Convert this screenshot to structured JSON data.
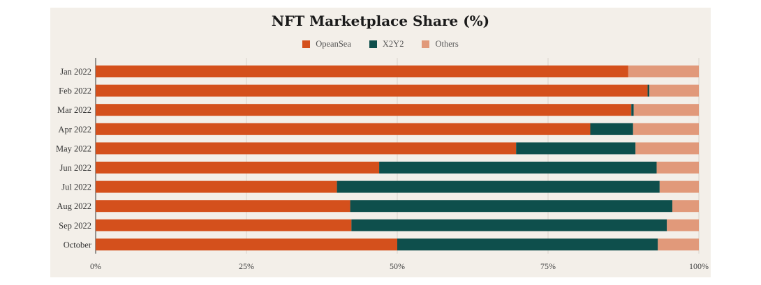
{
  "chart_data": {
    "type": "bar",
    "orientation": "horizontal",
    "stacked": true,
    "title": "NFT Marketplace Share (%)",
    "categories": [
      "Jan 2022",
      "Feb 2022",
      "Mar 2022",
      "Apr 2022",
      "May 2022",
      "Jun 2022",
      "Jul 2022",
      "Aug 2022",
      "Sep 2022",
      "October"
    ],
    "series": [
      {
        "name": "OpeanSea",
        "color": "#d4501c",
        "values": [
          88.3,
          91.5,
          88.8,
          82.0,
          69.7,
          47.0,
          40.0,
          42.2,
          42.4,
          50.0
        ]
      },
      {
        "name": "X2Y2",
        "color": "#0e4f4c",
        "values": [
          0.0,
          0.3,
          0.4,
          7.1,
          19.8,
          46.0,
          53.5,
          53.4,
          52.3,
          43.2
        ]
      },
      {
        "name": "Others",
        "color": "#e1997a",
        "values": [
          11.7,
          8.2,
          10.8,
          10.9,
          10.5,
          7.0,
          6.5,
          4.4,
          5.3,
          6.8
        ]
      }
    ],
    "x_ticks": [
      "0%",
      "25%",
      "50%",
      "75%",
      "100%"
    ],
    "xlim": [
      0,
      100
    ],
    "grid": "vertical",
    "legend_position": "top-center"
  }
}
